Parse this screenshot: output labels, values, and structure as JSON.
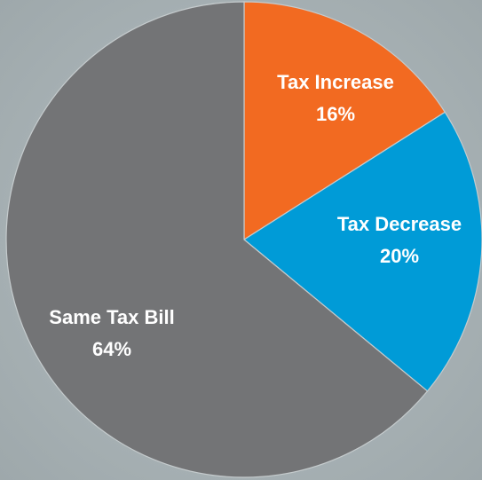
{
  "chart_data": {
    "type": "pie",
    "slices": [
      {
        "label": "Tax Increase",
        "value": 16,
        "display": "16%",
        "color": "#f26a21"
      },
      {
        "label": "Tax Decrease",
        "value": 20,
        "display": "20%",
        "color": "#009bd7"
      },
      {
        "label": "Same Tax Bill",
        "value": 64,
        "display": "64%",
        "color": "#737476"
      }
    ],
    "start": "top",
    "direction": "clockwise",
    "legend": "none"
  }
}
